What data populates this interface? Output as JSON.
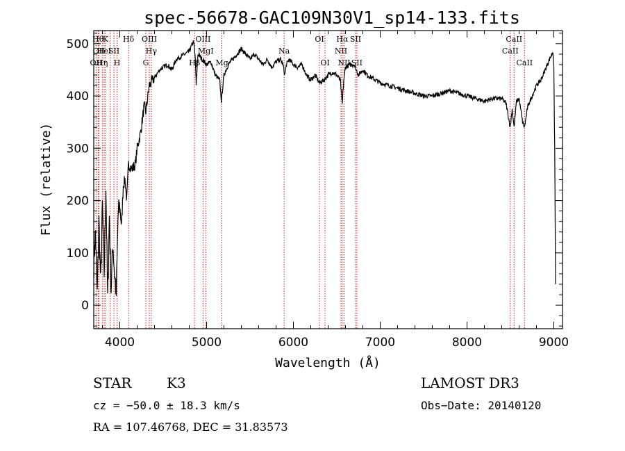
{
  "chart_data": {
    "type": "line",
    "title": "spec-56678-GAC109N30V1_sp14-133.fits",
    "xlabel": "Wavelength (Å)",
    "ylabel": "Flux (relative)",
    "xlim": [
      3700,
      9100
    ],
    "ylim": [
      -45,
      525
    ],
    "xticks": [
      4000,
      5000,
      6000,
      7000,
      8000,
      9000
    ],
    "yticks": [
      0,
      100,
      200,
      300,
      400,
      500
    ],
    "grid": false,
    "series": [
      {
        "name": "spectrum",
        "anchors": [
          [
            3700,
            80
          ],
          [
            3720,
            140
          ],
          [
            3740,
            20
          ],
          [
            3760,
            160
          ],
          [
            3780,
            40
          ],
          [
            3800,
            190
          ],
          [
            3820,
            60
          ],
          [
            3840,
            230
          ],
          [
            3860,
            10
          ],
          [
            3880,
            170
          ],
          [
            3900,
            30
          ],
          [
            3920,
            120
          ],
          [
            3940,
            60
          ],
          [
            3960,
            20
          ],
          [
            3980,
            170
          ],
          [
            4000,
            190
          ],
          [
            4020,
            150
          ],
          [
            4040,
            230
          ],
          [
            4060,
            240
          ],
          [
            4080,
            200
          ],
          [
            4100,
            270
          ],
          [
            4140,
            260
          ],
          [
            4180,
            270
          ],
          [
            4200,
            300
          ],
          [
            4240,
            330
          ],
          [
            4280,
            380
          ],
          [
            4300,
            370
          ],
          [
            4340,
            420
          ],
          [
            4380,
            430
          ],
          [
            4420,
            440
          ],
          [
            4460,
            450
          ],
          [
            4500,
            455
          ],
          [
            4550,
            460
          ],
          [
            4600,
            450
          ],
          [
            4650,
            470
          ],
          [
            4700,
            475
          ],
          [
            4750,
            480
          ],
          [
            4800,
            485
          ],
          [
            4850,
            505
          ],
          [
            4870,
            470
          ],
          [
            4880,
            420
          ],
          [
            4900,
            480
          ],
          [
            4950,
            470
          ],
          [
            5000,
            460
          ],
          [
            5050,
            465
          ],
          [
            5100,
            440
          ],
          [
            5150,
            430
          ],
          [
            5170,
            390
          ],
          [
            5200,
            440
          ],
          [
            5250,
            460
          ],
          [
            5300,
            470
          ],
          [
            5350,
            480
          ],
          [
            5400,
            490
          ],
          [
            5450,
            480
          ],
          [
            5500,
            470
          ],
          [
            5550,
            480
          ],
          [
            5600,
            470
          ],
          [
            5650,
            460
          ],
          [
            5700,
            470
          ],
          [
            5750,
            455
          ],
          [
            5800,
            465
          ],
          [
            5850,
            470
          ],
          [
            5880,
            460
          ],
          [
            5900,
            440
          ],
          [
            5920,
            460
          ],
          [
            5950,
            470
          ],
          [
            6000,
            460
          ],
          [
            6050,
            455
          ],
          [
            6100,
            460
          ],
          [
            6150,
            440
          ],
          [
            6200,
            430
          ],
          [
            6250,
            440
          ],
          [
            6300,
            425
          ],
          [
            6350,
            430
          ],
          [
            6400,
            440
          ],
          [
            6450,
            445
          ],
          [
            6500,
            440
          ],
          [
            6540,
            430
          ],
          [
            6563,
            385
          ],
          [
            6580,
            430
          ],
          [
            6600,
            455
          ],
          [
            6650,
            460
          ],
          [
            6700,
            460
          ],
          [
            6750,
            440
          ],
          [
            6800,
            450
          ],
          [
            6850,
            440
          ],
          [
            6900,
            435
          ],
          [
            6950,
            430
          ],
          [
            7000,
            425
          ],
          [
            7100,
            420
          ],
          [
            7200,
            415
          ],
          [
            7300,
            410
          ],
          [
            7400,
            405
          ],
          [
            7500,
            400
          ],
          [
            7600,
            400
          ],
          [
            7700,
            405
          ],
          [
            7800,
            410
          ],
          [
            7900,
            405
          ],
          [
            8000,
            400
          ],
          [
            8100,
            395
          ],
          [
            8200,
            390
          ],
          [
            8300,
            395
          ],
          [
            8400,
            395
          ],
          [
            8450,
            385
          ],
          [
            8498,
            340
          ],
          [
            8520,
            375
          ],
          [
            8542,
            340
          ],
          [
            8570,
            390
          ],
          [
            8600,
            395
          ],
          [
            8640,
            350
          ],
          [
            8662,
            340
          ],
          [
            8700,
            380
          ],
          [
            8750,
            400
          ],
          [
            8800,
            420
          ],
          [
            8850,
            430
          ],
          [
            8900,
            450
          ],
          [
            8950,
            470
          ],
          [
            8990,
            485
          ],
          [
            9000,
            455
          ],
          [
            9010,
            300
          ],
          [
            9020,
            40
          ]
        ]
      }
    ],
    "lines": [
      {
        "wl": 3727,
        "row": 2,
        "label": "OII"
      },
      {
        "wl": 3750,
        "row": 0,
        "label": "Hθ"
      },
      {
        "wl": 3760,
        "row": 1,
        "label": "OII"
      },
      {
        "wl": 3798,
        "row": 2,
        "label": "Hη"
      },
      {
        "wl": 3820,
        "row": 1,
        "label": "HeI"
      },
      {
        "wl": 3835,
        "row": 0,
        "label": "K"
      },
      {
        "wl": 3889,
        "row": 0,
        "label": ""
      },
      {
        "wl": 3933,
        "row": 1,
        "label": "SII"
      },
      {
        "wl": 3968,
        "row": 2,
        "label": "H"
      },
      {
        "wl": 4101,
        "row": 0,
        "label": "Hδ"
      },
      {
        "wl": 4300,
        "row": 2,
        "label": "G"
      },
      {
        "wl": 4340,
        "row": 0,
        "label": "OIII"
      },
      {
        "wl": 4363,
        "row": 1,
        "label": "Hγ"
      },
      {
        "wl": 4861,
        "row": 2,
        "label": "Hβ"
      },
      {
        "wl": 4959,
        "row": 0,
        "label": "OIII"
      },
      {
        "wl": 4990,
        "row": 1,
        "label": "MgI"
      },
      {
        "wl": 5176,
        "row": 2,
        "label": "Mg"
      },
      {
        "wl": 5893,
        "row": 1,
        "label": "Na"
      },
      {
        "wl": 6300,
        "row": 0,
        "label": "OI"
      },
      {
        "wl": 6364,
        "row": 2,
        "label": "OI"
      },
      {
        "wl": 6548,
        "row": 1,
        "label": "NII"
      },
      {
        "wl": 6563,
        "row": 0,
        "label": "Hα"
      },
      {
        "wl": 6584,
        "row": 2,
        "label": "NII"
      },
      {
        "wl": 6716,
        "row": 0,
        "label": "SII"
      },
      {
        "wl": 6731,
        "row": 2,
        "label": "SII"
      },
      {
        "wl": 8498,
        "row": 1,
        "label": "CaII"
      },
      {
        "wl": 8542,
        "row": 0,
        "label": "CaII"
      },
      {
        "wl": 8662,
        "row": 2,
        "label": "CaII"
      }
    ]
  },
  "info": {
    "object_class": "STAR",
    "subclass": "K3",
    "survey": "LAMOST DR3",
    "cz": "cz = −50.0 ± 18.3 km/s",
    "obs_date": "Obs−Date: 20140120",
    "coords": "RA = 107.46768, DEC =  31.83573"
  },
  "colors": {
    "line_marker": "#cc0000",
    "spectrum": "#000000",
    "axes": "#000000"
  }
}
